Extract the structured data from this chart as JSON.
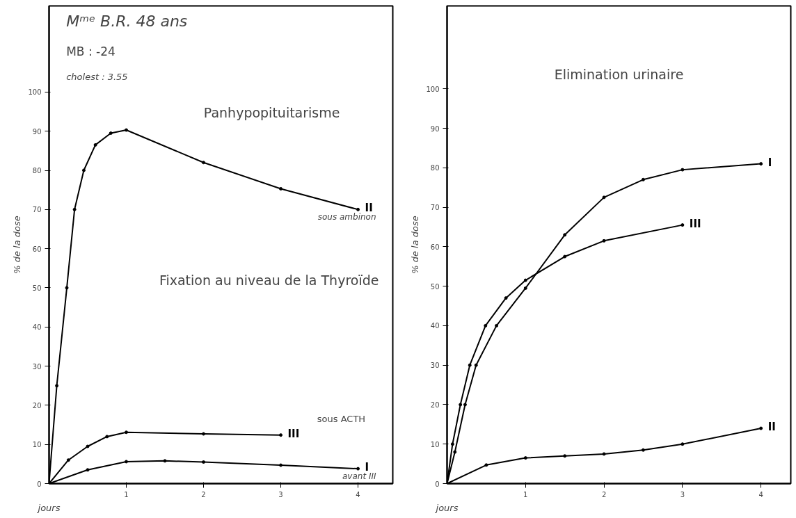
{
  "chart_data": [
    {
      "type": "line",
      "title": "Fixation au niveau de la Thyroïde",
      "xlabel": "jours",
      "ylabel": "% de la dose",
      "xlim": [
        0,
        4.45
      ],
      "ylim": [
        0,
        122
      ],
      "xticks": [
        1,
        2,
        3,
        4
      ],
      "yticks": [
        0,
        10,
        20,
        30,
        40,
        50,
        60,
        70,
        80,
        90,
        100
      ],
      "grid": false,
      "legend": false,
      "marker": "circle",
      "line_style": "solid",
      "annotations": [
        "Mᵐᵉ B.R. 48 ans",
        "MB : -24",
        "cholest : 3.55",
        "Panhypopituitarisme",
        "sous ACTH",
        {
          "text": "sous ambinon",
          "x": 4,
          "y": 70
        },
        {
          "text": "avant III",
          "x": 4,
          "y": 3.8
        }
      ],
      "series": [
        {
          "name": "II",
          "color": "#000000",
          "x": [
            0,
            0.1,
            0.23,
            0.33,
            0.45,
            0.6,
            0.8,
            1,
            2,
            3,
            4
          ],
          "values": [
            0,
            25,
            50,
            70,
            80,
            86.5,
            89.5,
            90.3,
            82,
            75.3,
            70
          ]
        },
        {
          "name": "III",
          "color": "#000000",
          "x": [
            0,
            0.25,
            0.5,
            0.75,
            1,
            2,
            3
          ],
          "values": [
            0,
            6,
            9.5,
            12,
            13.1,
            12.7,
            12.4
          ]
        },
        {
          "name": "I",
          "color": "#000000",
          "x": [
            0,
            0.5,
            1,
            1.5,
            2,
            3,
            4
          ],
          "values": [
            0,
            3.5,
            5.6,
            5.8,
            5.5,
            4.7,
            3.8
          ]
        }
      ]
    },
    {
      "type": "line",
      "title": "Elimination urinaire",
      "xlabel": "jours",
      "ylabel": "% de la dose",
      "xlim": [
        0,
        4.38
      ],
      "ylim": [
        0,
        121
      ],
      "xticks": [
        1,
        2,
        3,
        4
      ],
      "yticks": [
        0,
        10,
        20,
        30,
        40,
        50,
        60,
        70,
        80,
        90,
        100
      ],
      "grid": false,
      "legend": false,
      "marker": "circle",
      "line_style": "solid",
      "series": [
        {
          "name": "I",
          "color": "#000000",
          "x": [
            0,
            0.1,
            0.23,
            0.37,
            0.63,
            1,
            1.5,
            2,
            2.5,
            3,
            4
          ],
          "values": [
            0,
            8,
            20,
            30,
            40,
            49.5,
            63,
            72.5,
            77,
            79.5,
            81
          ]
        },
        {
          "name": "III",
          "color": "#000000",
          "x": [
            0,
            0.07,
            0.17,
            0.29,
            0.49,
            0.75,
            1,
            1.5,
            2,
            3
          ],
          "values": [
            0,
            10,
            20,
            30,
            40,
            47,
            51.5,
            57.5,
            61.5,
            65.5
          ]
        },
        {
          "name": "II",
          "color": "#000000",
          "x": [
            0,
            0.5,
            1,
            1.5,
            2,
            2.5,
            3,
            4
          ],
          "values": [
            0,
            4.7,
            6.5,
            7,
            7.5,
            8.5,
            10,
            14
          ]
        }
      ]
    }
  ]
}
